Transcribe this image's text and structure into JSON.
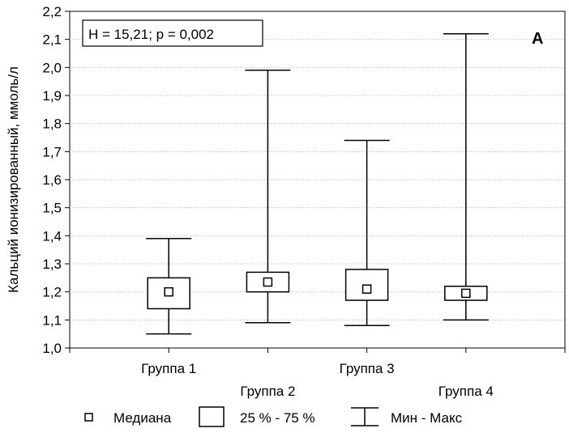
{
  "chart_data": {
    "type": "box",
    "ylabel": "Кальций ионизированный, ммоль/л",
    "ylim": [
      1.0,
      2.2
    ],
    "yticks": [
      "1,0",
      "1,1",
      "1,2",
      "1,3",
      "1,4",
      "1,5",
      "1,6",
      "1,7",
      "1,8",
      "1,9",
      "2,0",
      "2,1",
      "2,2"
    ],
    "ytick_values": [
      1.0,
      1.1,
      1.2,
      1.3,
      1.4,
      1.5,
      1.6,
      1.7,
      1.8,
      1.9,
      2.0,
      2.1,
      2.2
    ],
    "grid": true,
    "stat_annotation": "H = 15,21; p = 0,002",
    "panel_label": "A",
    "categories": [
      "Группа 1",
      "Группа 2",
      "Группа 3",
      "Группа 4"
    ],
    "boxes": [
      {
        "category": "Группа 1",
        "min": 1.05,
        "q1": 1.14,
        "median": 1.2,
        "q3": 1.25,
        "max": 1.39
      },
      {
        "category": "Группа 2",
        "min": 1.09,
        "q1": 1.2,
        "median": 1.235,
        "q3": 1.27,
        "max": 1.99
      },
      {
        "category": "Группа 3",
        "min": 1.08,
        "q1": 1.17,
        "median": 1.21,
        "q3": 1.28,
        "max": 1.74
      },
      {
        "category": "Группа 4",
        "min": 1.1,
        "q1": 1.17,
        "median": 1.195,
        "q3": 1.22,
        "max": 2.12
      }
    ],
    "legend": {
      "position": "bottom",
      "median": "Медиана",
      "iqr": "25 % - 75 %",
      "range": "Мин - Макс"
    }
  }
}
